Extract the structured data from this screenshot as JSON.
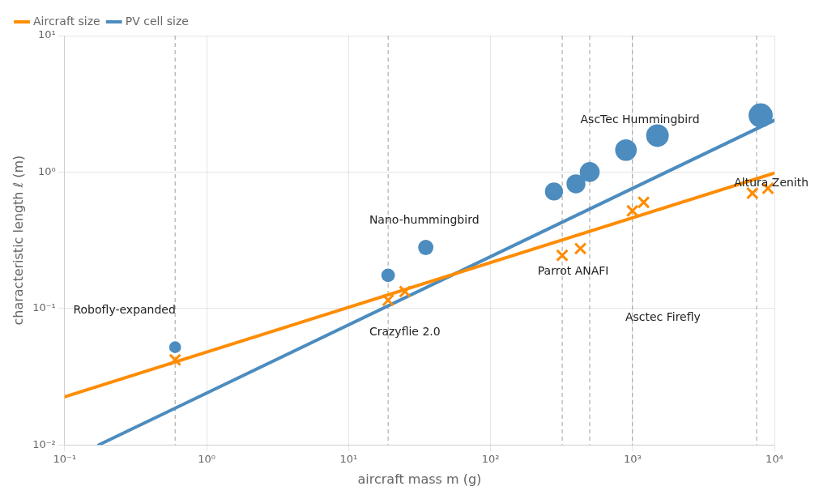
{
  "chart_data": {
    "type": "scatter",
    "xlabel": "aircraft mass m (g)",
    "ylabel": "characteristic length ℓ (m)",
    "log": true,
    "xlim": [
      0.1,
      10000
    ],
    "ylim": [
      0.01,
      10
    ],
    "xticks": [
      {
        "value": 0.1,
        "label": "10⁻¹"
      },
      {
        "value": 1,
        "label": "10⁰"
      },
      {
        "value": 10,
        "label": "10¹"
      },
      {
        "value": 100,
        "label": "10²"
      },
      {
        "value": 1000,
        "label": "10³"
      },
      {
        "value": 10000,
        "label": "10⁴"
      }
    ],
    "yticks": [
      {
        "value": 0.01,
        "label": "10⁻²"
      },
      {
        "value": 0.1,
        "label": "10⁻¹"
      },
      {
        "value": 1,
        "label": "10⁰"
      },
      {
        "value": 10,
        "label": "10¹"
      }
    ],
    "grid": true,
    "legend": "upper left",
    "series": [
      {
        "name": "Aircraft size",
        "type": "line",
        "color": "#FF8C00",
        "line_style": "solid",
        "x": [
          0.1,
          10000
        ],
        "values": [
          0.022491,
          0.981748
        ]
      },
      {
        "name": "PV cell size",
        "type": "line",
        "color": "#4C8CBF",
        "line_style": "solid",
        "x": [
          0.17378,
          10000
        ],
        "values": [
          0.01,
          2.398833
        ]
      },
      {
        "type": "scatter",
        "color": "#4C8CBF",
        "marker": "circle",
        "x": [
          0.6,
          19,
          35,
          280,
          400,
          500,
          900,
          1500,
          8000
        ],
        "values": [
          0.052,
          0.175,
          0.28,
          0.72,
          0.82,
          1.0,
          1.45,
          1.85,
          2.6
        ],
        "sizes": [
          120,
          160,
          200,
          280,
          310,
          340,
          400,
          440,
          500
        ]
      },
      {
        "type": "scatter",
        "color": "#FF8C00",
        "marker": "x",
        "x": [
          0.6,
          19,
          25,
          320,
          430,
          1000,
          1200,
          7000,
          9000
        ],
        "values": [
          0.042,
          0.115,
          0.133,
          0.245,
          0.275,
          0.52,
          0.6,
          0.7,
          0.76
        ]
      }
    ],
    "vertical_lines": [
      0.6,
      19,
      320,
      500,
      1000,
      7500
    ],
    "annotations": [
      {
        "text": "Robofly-expanded",
        "x": 0.115,
        "y": 0.097
      },
      {
        "text": "Nano-hummingbird",
        "x": 14,
        "y": 0.44
      },
      {
        "text": "Crazyflie 2.0",
        "x": 14,
        "y": 0.067
      },
      {
        "text": "Parrot ANAFI",
        "x": 215,
        "y": 0.185
      },
      {
        "text": "AscTec Hummingbird",
        "x": 430,
        "y": 2.4
      },
      {
        "text": "Asctec Firefly",
        "x": 890,
        "y": 0.085
      },
      {
        "text": "Altura Zenith",
        "x": 5200,
        "y": 0.83
      }
    ]
  }
}
